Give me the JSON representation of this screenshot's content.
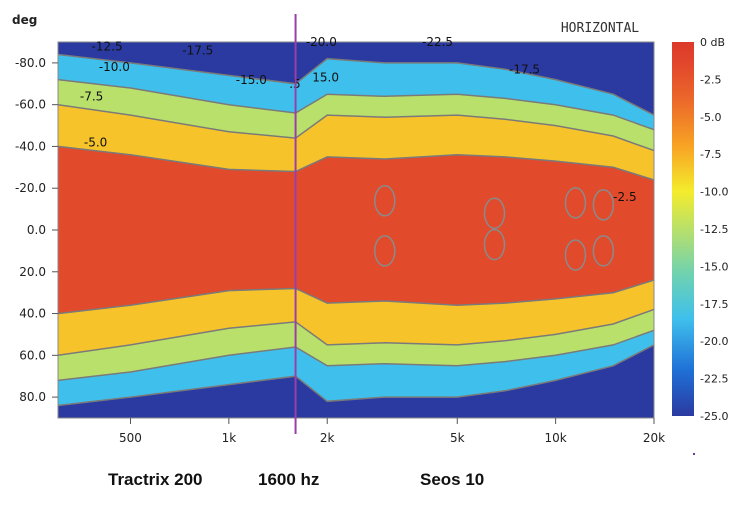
{
  "chart_data": {
    "type": "heatmap",
    "title": "HORIZONTAL",
    "ylabel": "deg",
    "xscale": "log",
    "xlim": [
      300,
      20000
    ],
    "ylim": [
      -90,
      90
    ],
    "y_inverted": true,
    "x_ticks": [
      {
        "value": 500,
        "label": "500"
      },
      {
        "value": 1000,
        "label": "1k"
      },
      {
        "value": 2000,
        "label": "2k"
      },
      {
        "value": 5000,
        "label": "5k"
      },
      {
        "value": 10000,
        "label": "10k"
      },
      {
        "value": 20000,
        "label": "20k"
      }
    ],
    "y_ticks": [
      {
        "value": -80,
        "label": "-80.0"
      },
      {
        "value": -60,
        "label": "-60.0"
      },
      {
        "value": -40,
        "label": "-40.0"
      },
      {
        "value": -20,
        "label": "-20.0"
      },
      {
        "value": 0,
        "label": "0.0"
      },
      {
        "value": 20,
        "label": "20.0"
      },
      {
        "value": 40,
        "label": "40.0"
      },
      {
        "value": 60,
        "label": "60.0"
      },
      {
        "value": 80,
        "label": "80.0"
      }
    ],
    "colorbar": {
      "unit": "dB",
      "range": [
        -25,
        0
      ],
      "ticks": [
        {
          "value": 0,
          "label": "0 dB"
        },
        {
          "value": -2.5,
          "label": "-2.5"
        },
        {
          "value": -5,
          "label": "-5.0"
        },
        {
          "value": -7.5,
          "label": "-7.5"
        },
        {
          "value": -10,
          "label": "-10.0"
        },
        {
          "value": -12.5,
          "label": "-12.5"
        },
        {
          "value": -15,
          "label": "-15.0"
        },
        {
          "value": -17.5,
          "label": "-17.5"
        },
        {
          "value": -20,
          "label": "-20.0"
        },
        {
          "value": -22.5,
          "label": "-22.5"
        },
        {
          "value": -25,
          "label": "-25.0"
        }
      ],
      "colors": [
        "#2b3aa0",
        "#1f6fd6",
        "#3fc0ec",
        "#6fd2b0",
        "#b9e06a",
        "#f4ec2c",
        "#f8a424",
        "#ec6a2a",
        "#e2472c",
        "#dc3a2a"
      ]
    },
    "contour_levels": [
      -2.5,
      -5,
      -7.5,
      -10,
      -12.5,
      -15,
      -17.5,
      -20,
      -22.5
    ],
    "half_width_deg": {
      "freq": [
        300,
        500,
        1000,
        1600,
        2000,
        3000,
        5000,
        7000,
        10000,
        15000,
        20000
      ],
      "-5": [
        40,
        36,
        29,
        28,
        35,
        34,
        36,
        35,
        33,
        30,
        24
      ],
      "-10": [
        60,
        55,
        47,
        44,
        55,
        54,
        55,
        53,
        50,
        45,
        38
      ],
      "-15": [
        72,
        68,
        60,
        56,
        65,
        64,
        65,
        63,
        60,
        55,
        48
      ],
      "-20": [
        84,
        80,
        74,
        70,
        82,
        80,
        80,
        77,
        72,
        65,
        55
      ]
    },
    "contour_labels": [
      {
        "text": "-12.5",
        "freq": 380,
        "deg": -86
      },
      {
        "text": "-10.0",
        "freq": 400,
        "deg": -76
      },
      {
        "text": "-7.5",
        "freq": 350,
        "deg": -62
      },
      {
        "text": "-5.0",
        "freq": 360,
        "deg": -40
      },
      {
        "text": "-17.5",
        "freq": 720,
        "deg": -84
      },
      {
        "text": "-15.0",
        "freq": 1050,
        "deg": -70
      },
      {
        "text": "-20.0",
        "freq": 1720,
        "deg": -88
      },
      {
        "text": ".5",
        "freq": 1530,
        "deg": -68
      },
      {
        "text": "15.0",
        "freq": 1800,
        "deg": -71
      },
      {
        "text": "-22.5",
        "freq": 3900,
        "deg": -88
      },
      {
        "text": "-17.5",
        "freq": 7200,
        "deg": -75
      },
      {
        "text": "-2.5",
        "freq": 15000,
        "deg": -14
      }
    ],
    "marker": {
      "freq": 1600,
      "label": "1600 hz"
    },
    "regions": {
      "left": "Tractrix 200",
      "right": "Seos 10"
    }
  }
}
